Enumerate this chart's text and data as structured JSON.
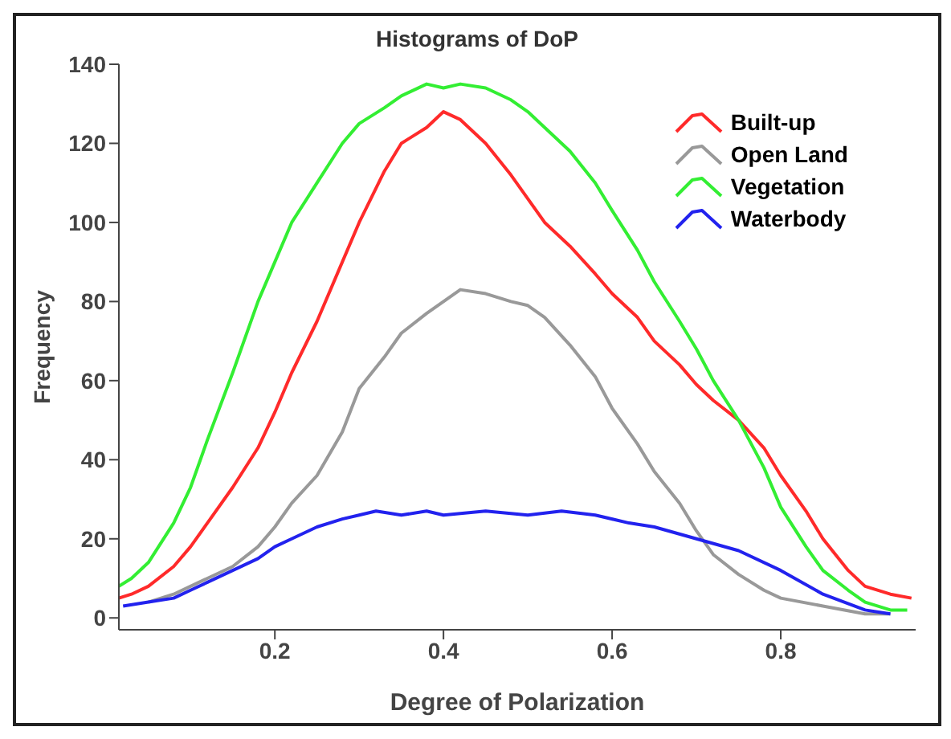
{
  "chart_data": {
    "type": "line",
    "title": "Histograms of DoP",
    "xlabel": "Degree of Polarization",
    "ylabel": "Frequency",
    "xlim": [
      0.015,
      0.96
    ],
    "xticks": [
      0.2,
      0.4,
      0.6,
      0.8
    ],
    "ylim": [
      -3,
      140
    ],
    "yticks": [
      0,
      20,
      40,
      60,
      80,
      100,
      120,
      140
    ],
    "grid": false,
    "legend": "top right",
    "marker": "none",
    "line_style": "solid",
    "series": [
      {
        "name": "Built-up",
        "color": "#ff2a2a",
        "x": [
          0.015,
          0.03,
          0.05,
          0.08,
          0.1,
          0.12,
          0.15,
          0.18,
          0.2,
          0.22,
          0.25,
          0.28,
          0.3,
          0.33,
          0.35,
          0.38,
          0.4,
          0.42,
          0.45,
          0.48,
          0.5,
          0.52,
          0.55,
          0.58,
          0.6,
          0.63,
          0.65,
          0.68,
          0.7,
          0.72,
          0.75,
          0.78,
          0.8,
          0.83,
          0.85,
          0.88,
          0.9,
          0.93,
          0.955
        ],
        "values": [
          5,
          6,
          8,
          13,
          18,
          24,
          33,
          43,
          52,
          62,
          75,
          90,
          100,
          113,
          120,
          124,
          128,
          126,
          120,
          112,
          106,
          100,
          94,
          87,
          82,
          76,
          70,
          64,
          59,
          55,
          50,
          43,
          36,
          27,
          20,
          12,
          8,
          6,
          5
        ]
      },
      {
        "name": "Open Land",
        "color": "#999999",
        "x": [
          0.05,
          0.08,
          0.1,
          0.12,
          0.15,
          0.18,
          0.2,
          0.22,
          0.25,
          0.28,
          0.3,
          0.33,
          0.35,
          0.38,
          0.4,
          0.42,
          0.45,
          0.48,
          0.5,
          0.52,
          0.55,
          0.58,
          0.6,
          0.63,
          0.65,
          0.68,
          0.7,
          0.72,
          0.75,
          0.78,
          0.8,
          0.85,
          0.9,
          0.93
        ],
        "values": [
          4,
          6,
          8,
          10,
          13,
          18,
          23,
          29,
          36,
          47,
          58,
          66,
          72,
          77,
          80,
          83,
          82,
          80,
          79,
          76,
          69,
          61,
          53,
          44,
          37,
          29,
          22,
          16,
          11,
          7,
          5,
          3,
          1,
          1
        ]
      },
      {
        "name": "Vegetation",
        "color": "#33ee33",
        "x": [
          0.015,
          0.03,
          0.05,
          0.08,
          0.1,
          0.12,
          0.15,
          0.18,
          0.2,
          0.22,
          0.25,
          0.28,
          0.3,
          0.33,
          0.35,
          0.38,
          0.4,
          0.42,
          0.45,
          0.48,
          0.5,
          0.52,
          0.55,
          0.58,
          0.6,
          0.63,
          0.65,
          0.68,
          0.7,
          0.72,
          0.75,
          0.78,
          0.8,
          0.83,
          0.85,
          0.88,
          0.9,
          0.93,
          0.95
        ],
        "values": [
          8,
          10,
          14,
          24,
          33,
          45,
          62,
          80,
          90,
          100,
          110,
          120,
          125,
          129,
          132,
          135,
          134,
          135,
          134,
          131,
          128,
          124,
          118,
          110,
          103,
          93,
          85,
          75,
          68,
          60,
          50,
          38,
          28,
          18,
          12,
          7,
          4,
          2,
          2
        ]
      },
      {
        "name": "Waterbody",
        "color": "#2222ee",
        "x": [
          0.02,
          0.05,
          0.08,
          0.1,
          0.12,
          0.15,
          0.18,
          0.2,
          0.22,
          0.25,
          0.28,
          0.3,
          0.32,
          0.35,
          0.38,
          0.4,
          0.45,
          0.5,
          0.54,
          0.58,
          0.62,
          0.65,
          0.7,
          0.75,
          0.8,
          0.85,
          0.9,
          0.93
        ],
        "values": [
          3,
          4,
          5,
          7,
          9,
          12,
          15,
          18,
          20,
          23,
          25,
          26,
          27,
          26,
          27,
          26,
          27,
          26,
          27,
          26,
          24,
          23,
          20,
          17,
          12,
          6,
          2,
          1
        ]
      }
    ]
  }
}
